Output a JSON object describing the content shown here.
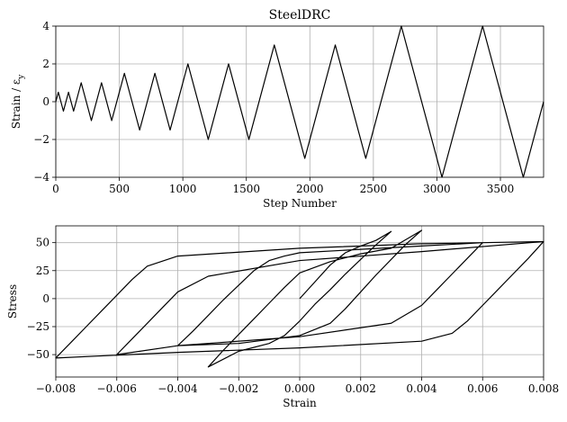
{
  "chart_data": [
    {
      "type": "line",
      "title": "SteelDRC",
      "xlabel": "Step Number",
      "ylabel": "Strain / ε",
      "ylabel_sub": "y",
      "xlim": [
        0,
        3840
      ],
      "ylim": [
        -4,
        4
      ],
      "xticks": [
        0,
        500,
        1000,
        1500,
        2000,
        2500,
        3000,
        3500
      ],
      "yticks": [
        -4,
        -2,
        0,
        2,
        4
      ],
      "xtick_labels": [
        "0",
        "500",
        "1000",
        "1500",
        "2000",
        "2500",
        "3000",
        "3500"
      ],
      "ytick_labels": [
        "−4",
        "−2",
        "0",
        "2",
        "4"
      ],
      "grid": true,
      "series": [
        {
          "x": [
            0,
            20,
            60,
            100,
            140,
            200,
            280,
            360,
            440,
            540,
            660,
            780,
            900,
            1040,
            1200,
            1360,
            1520,
            1720,
            1960,
            2200,
            2440,
            2720,
            3040,
            3360,
            3680,
            3840
          ],
          "values": [
            0,
            0.5,
            -0.5,
            0.5,
            -0.5,
            1,
            -1,
            1,
            -1,
            1.5,
            -1.5,
            1.5,
            -1.5,
            2,
            -2,
            2,
            -2,
            3,
            -3,
            3,
            -3,
            4,
            -4,
            4,
            -4,
            0
          ]
        }
      ]
    },
    {
      "type": "line",
      "title": "",
      "xlabel": "Strain",
      "ylabel": "Stress",
      "xlim": [
        -0.008,
        0.008
      ],
      "ylim": [
        -70,
        65
      ],
      "xticks": [
        -0.008,
        -0.006,
        -0.004,
        -0.002,
        0,
        0.002,
        0.004,
        0.006,
        0.008
      ],
      "yticks": [
        -50,
        -25,
        0,
        25,
        50
      ],
      "xtick_labels": [
        "−0.008",
        "−0.006",
        "−0.004",
        "−0.002",
        "0.000",
        "0.002",
        "0.004",
        "0.006",
        "0.008"
      ],
      "ytick_labels": [
        "−50",
        "−25",
        "0",
        "25",
        "50"
      ],
      "grid": true,
      "series": [
        {
          "x": [
            0.0,
            0.0005,
            0.001,
            0.0015,
            0.002,
            0.0025,
            0.003,
            0.0025,
            0.002,
            0.0015,
            0.001,
            0.0005,
            0.0,
            -0.0005,
            -0.001,
            -0.002,
            -0.003,
            -0.0025,
            -0.002,
            -0.0015,
            -0.001,
            -0.0005,
            0.0,
            0.001,
            0.002,
            0.003,
            0.004,
            0.0035,
            0.003,
            0.0025,
            0.002,
            0.0015,
            0.001,
            0.0,
            -0.002,
            -0.004,
            -0.0035,
            -0.003,
            -0.0025,
            -0.002,
            -0.0015,
            -0.001,
            -0.0005,
            0.0,
            0.002,
            0.004,
            0.006,
            0.0055,
            0.005,
            0.0045,
            0.004,
            0.003,
            0.0,
            -0.004,
            -0.006,
            -0.0055,
            -0.005,
            -0.0045,
            -0.004,
            -0.003,
            0.0,
            0.004,
            0.008,
            0.0075,
            0.007,
            0.0065,
            0.006,
            0.0055,
            0.005,
            0.004,
            0.0,
            -0.004,
            -0.008,
            -0.0075,
            -0.007,
            -0.0065,
            -0.006,
            -0.0055,
            -0.005,
            -0.004,
            0.0,
            0.004,
            0.008
          ],
          "values": [
            0,
            15,
            30,
            41,
            47,
            52,
            60,
            48,
            35,
            22,
            8,
            -5,
            -20,
            -33,
            -40,
            -47,
            -61,
            -46,
            -32,
            -18,
            -4,
            10,
            23,
            33,
            40,
            45,
            61,
            49,
            35,
            21,
            6,
            -9,
            -22,
            -33,
            -40,
            -42,
            -29,
            -15,
            -1,
            12,
            25,
            34,
            38,
            41,
            44,
            47,
            50,
            36,
            22,
            8,
            -6,
            -22,
            -34,
            -42,
            -50,
            -36,
            -22,
            -8,
            6,
            20,
            34,
            42,
            51,
            36,
            22,
            8,
            -6,
            -20,
            -31,
            -38,
            -44,
            -48,
            -53,
            -39,
            -25,
            -11,
            3,
            17,
            29,
            38,
            45,
            49,
            51
          ]
        }
      ]
    }
  ]
}
